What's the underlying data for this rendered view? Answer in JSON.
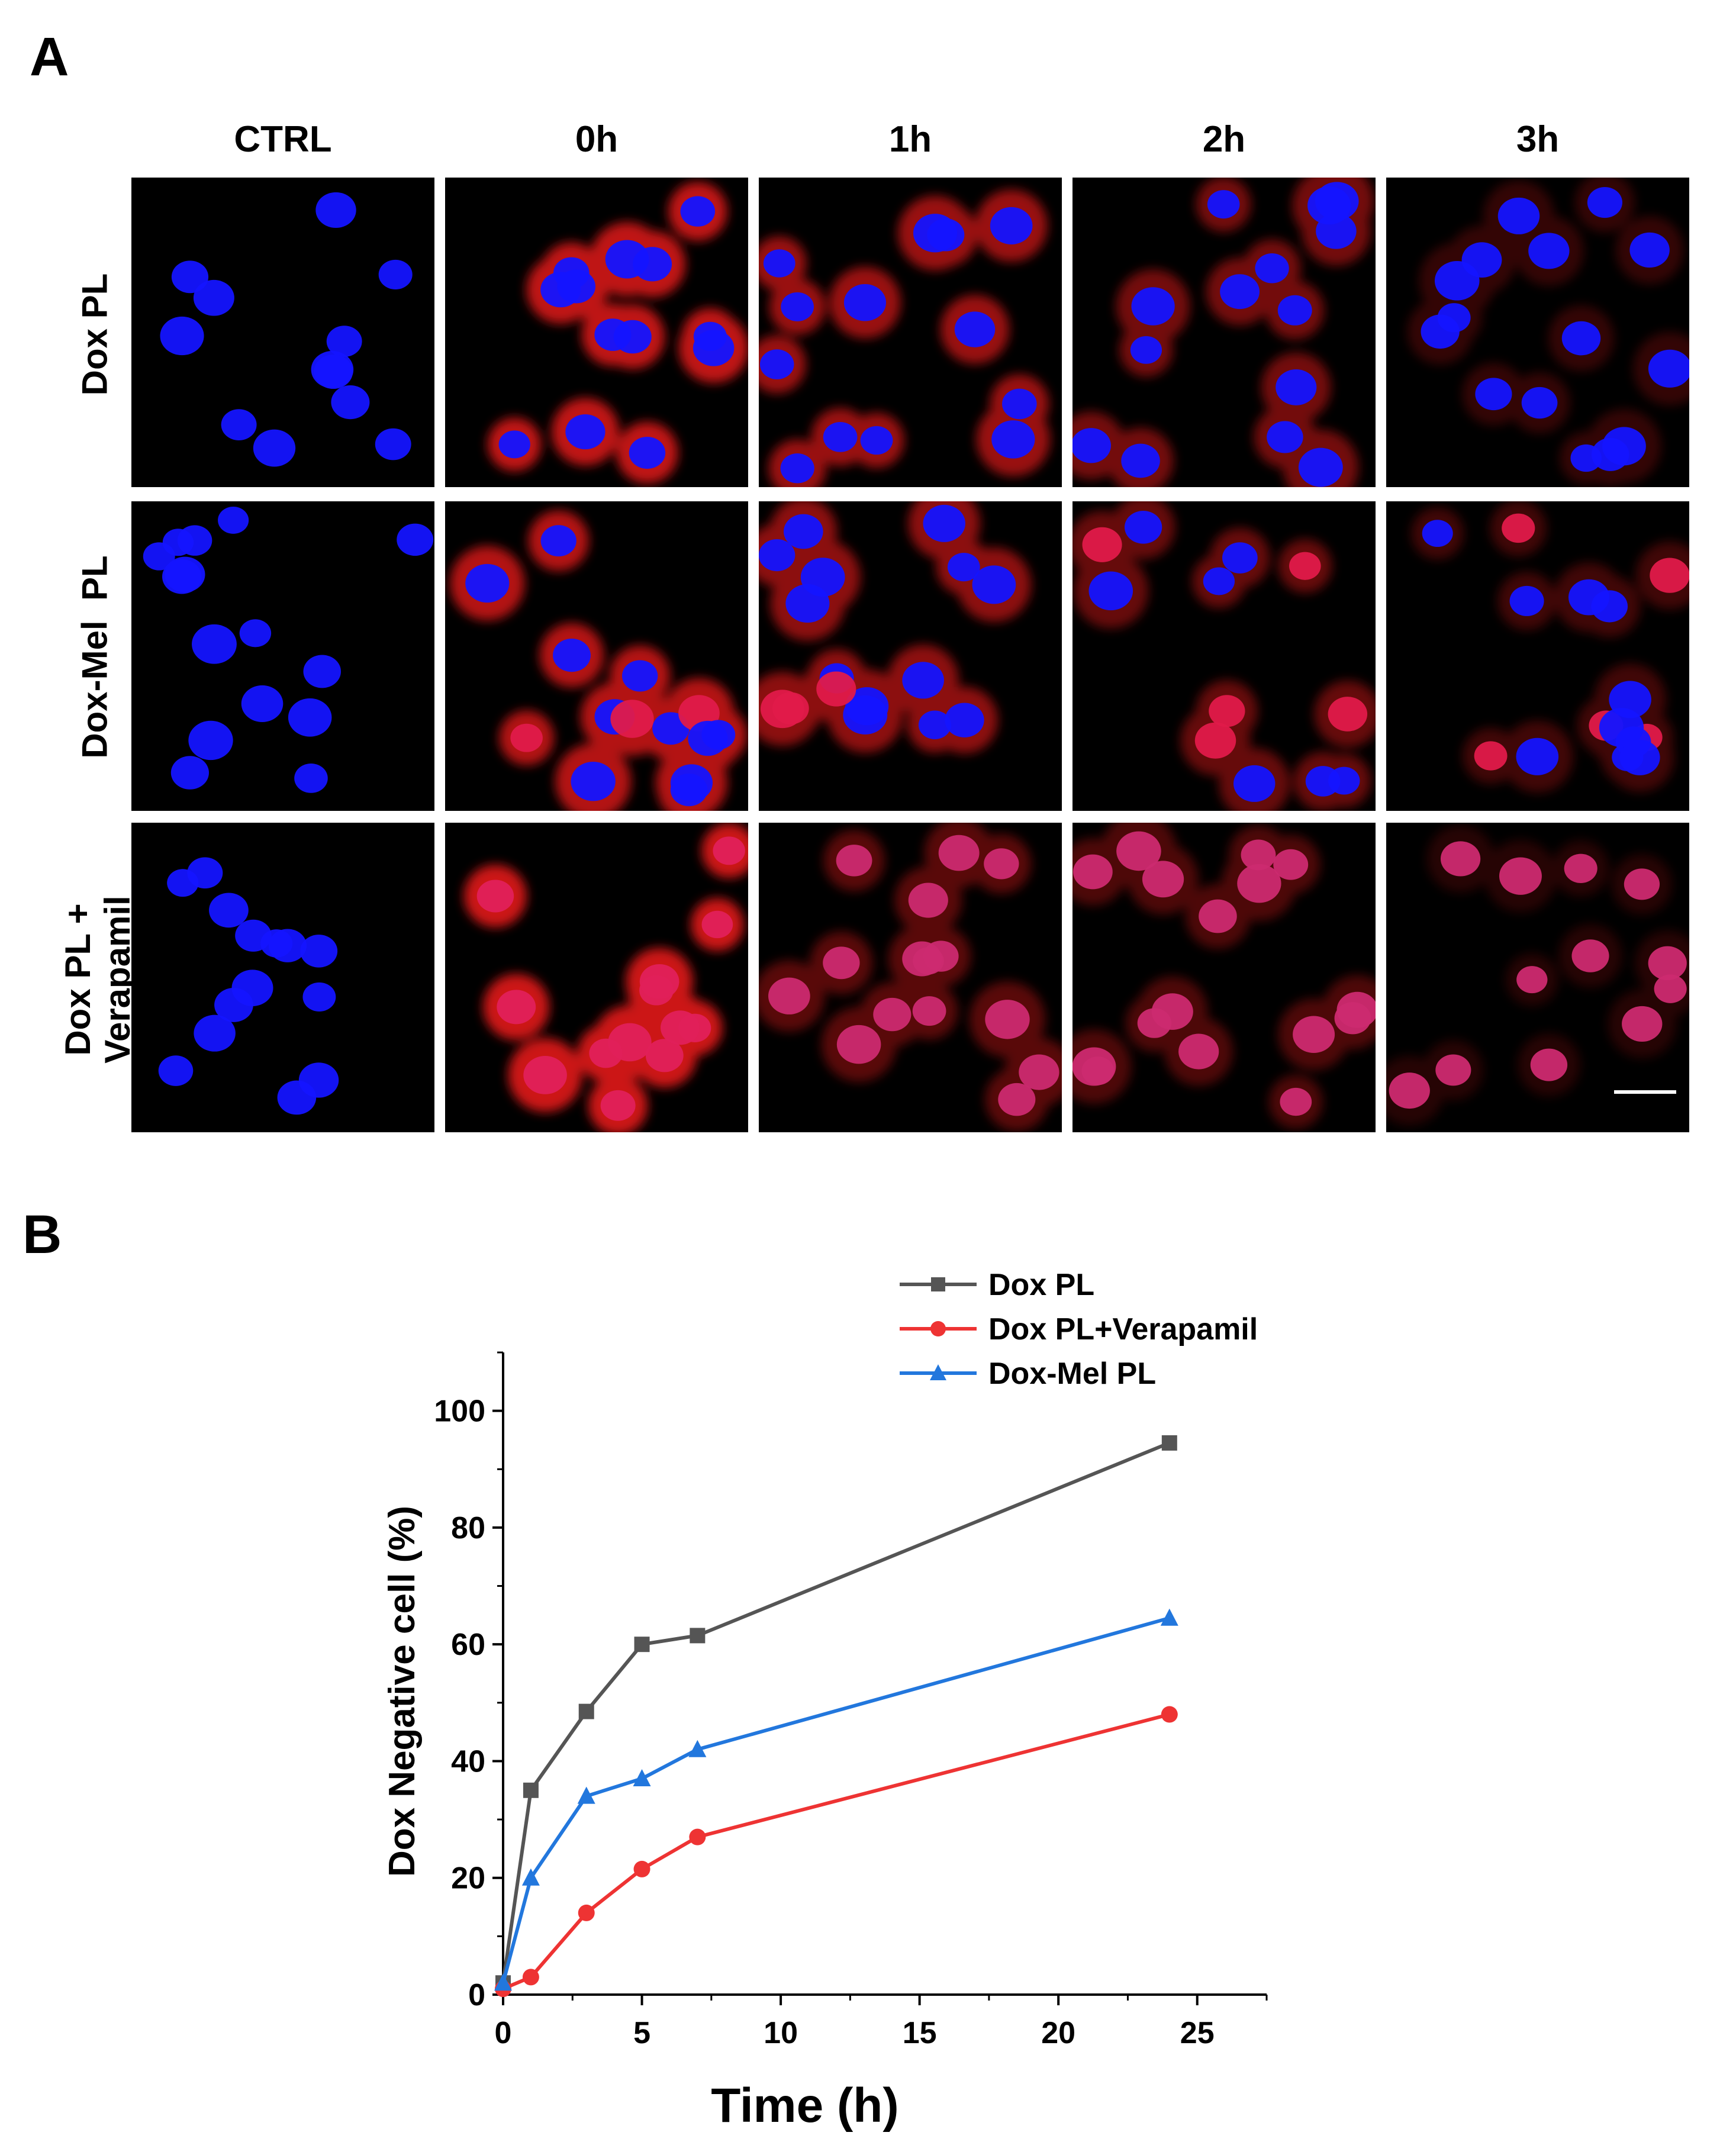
{
  "panel_a": {
    "letter": "A",
    "columns": [
      "CTRL",
      "0h",
      "1h",
      "2h",
      "3h"
    ],
    "rows": [
      [
        "Dox PL"
      ],
      [
        "Dox-Mel  PL"
      ],
      [
        "Dox PL +",
        "Verapamil"
      ]
    ],
    "colors": {
      "nucleus": "#1414ff",
      "dox": "#ff1a1a",
      "background": "#000000"
    }
  },
  "panel_b": {
    "letter": "B",
    "chart_data": {
      "type": "line",
      "xlabel": "Time (h)",
      "ylabel": "Dox Negative cell (%)",
      "xlim": [
        0,
        27.5
      ],
      "ylim": [
        0,
        110
      ],
      "xticks": [
        0,
        5,
        10,
        15,
        20,
        25
      ],
      "yticks": [
        0,
        20,
        40,
        60,
        80,
        100
      ],
      "legend_position": "top-right",
      "grid": false,
      "series": [
        {
          "name": "Dox PL",
          "color": "#555555",
          "marker": "square",
          "x": [
            0,
            1,
            3,
            5,
            7,
            24
          ],
          "y": [
            2,
            35,
            48.5,
            60,
            61.5,
            94.5
          ]
        },
        {
          "name": "Dox PL+Verapamil",
          "color": "#ee3333",
          "marker": "circle",
          "x": [
            0,
            1,
            3,
            5,
            7,
            24
          ],
          "y": [
            1,
            3,
            14,
            21.5,
            27,
            48
          ]
        },
        {
          "name": "Dox-Mel PL",
          "color": "#2277dd",
          "marker": "triangle",
          "x": [
            0,
            1,
            3,
            5,
            7,
            24
          ],
          "y": [
            2,
            20,
            34,
            37,
            42,
            64.5
          ]
        }
      ]
    }
  }
}
